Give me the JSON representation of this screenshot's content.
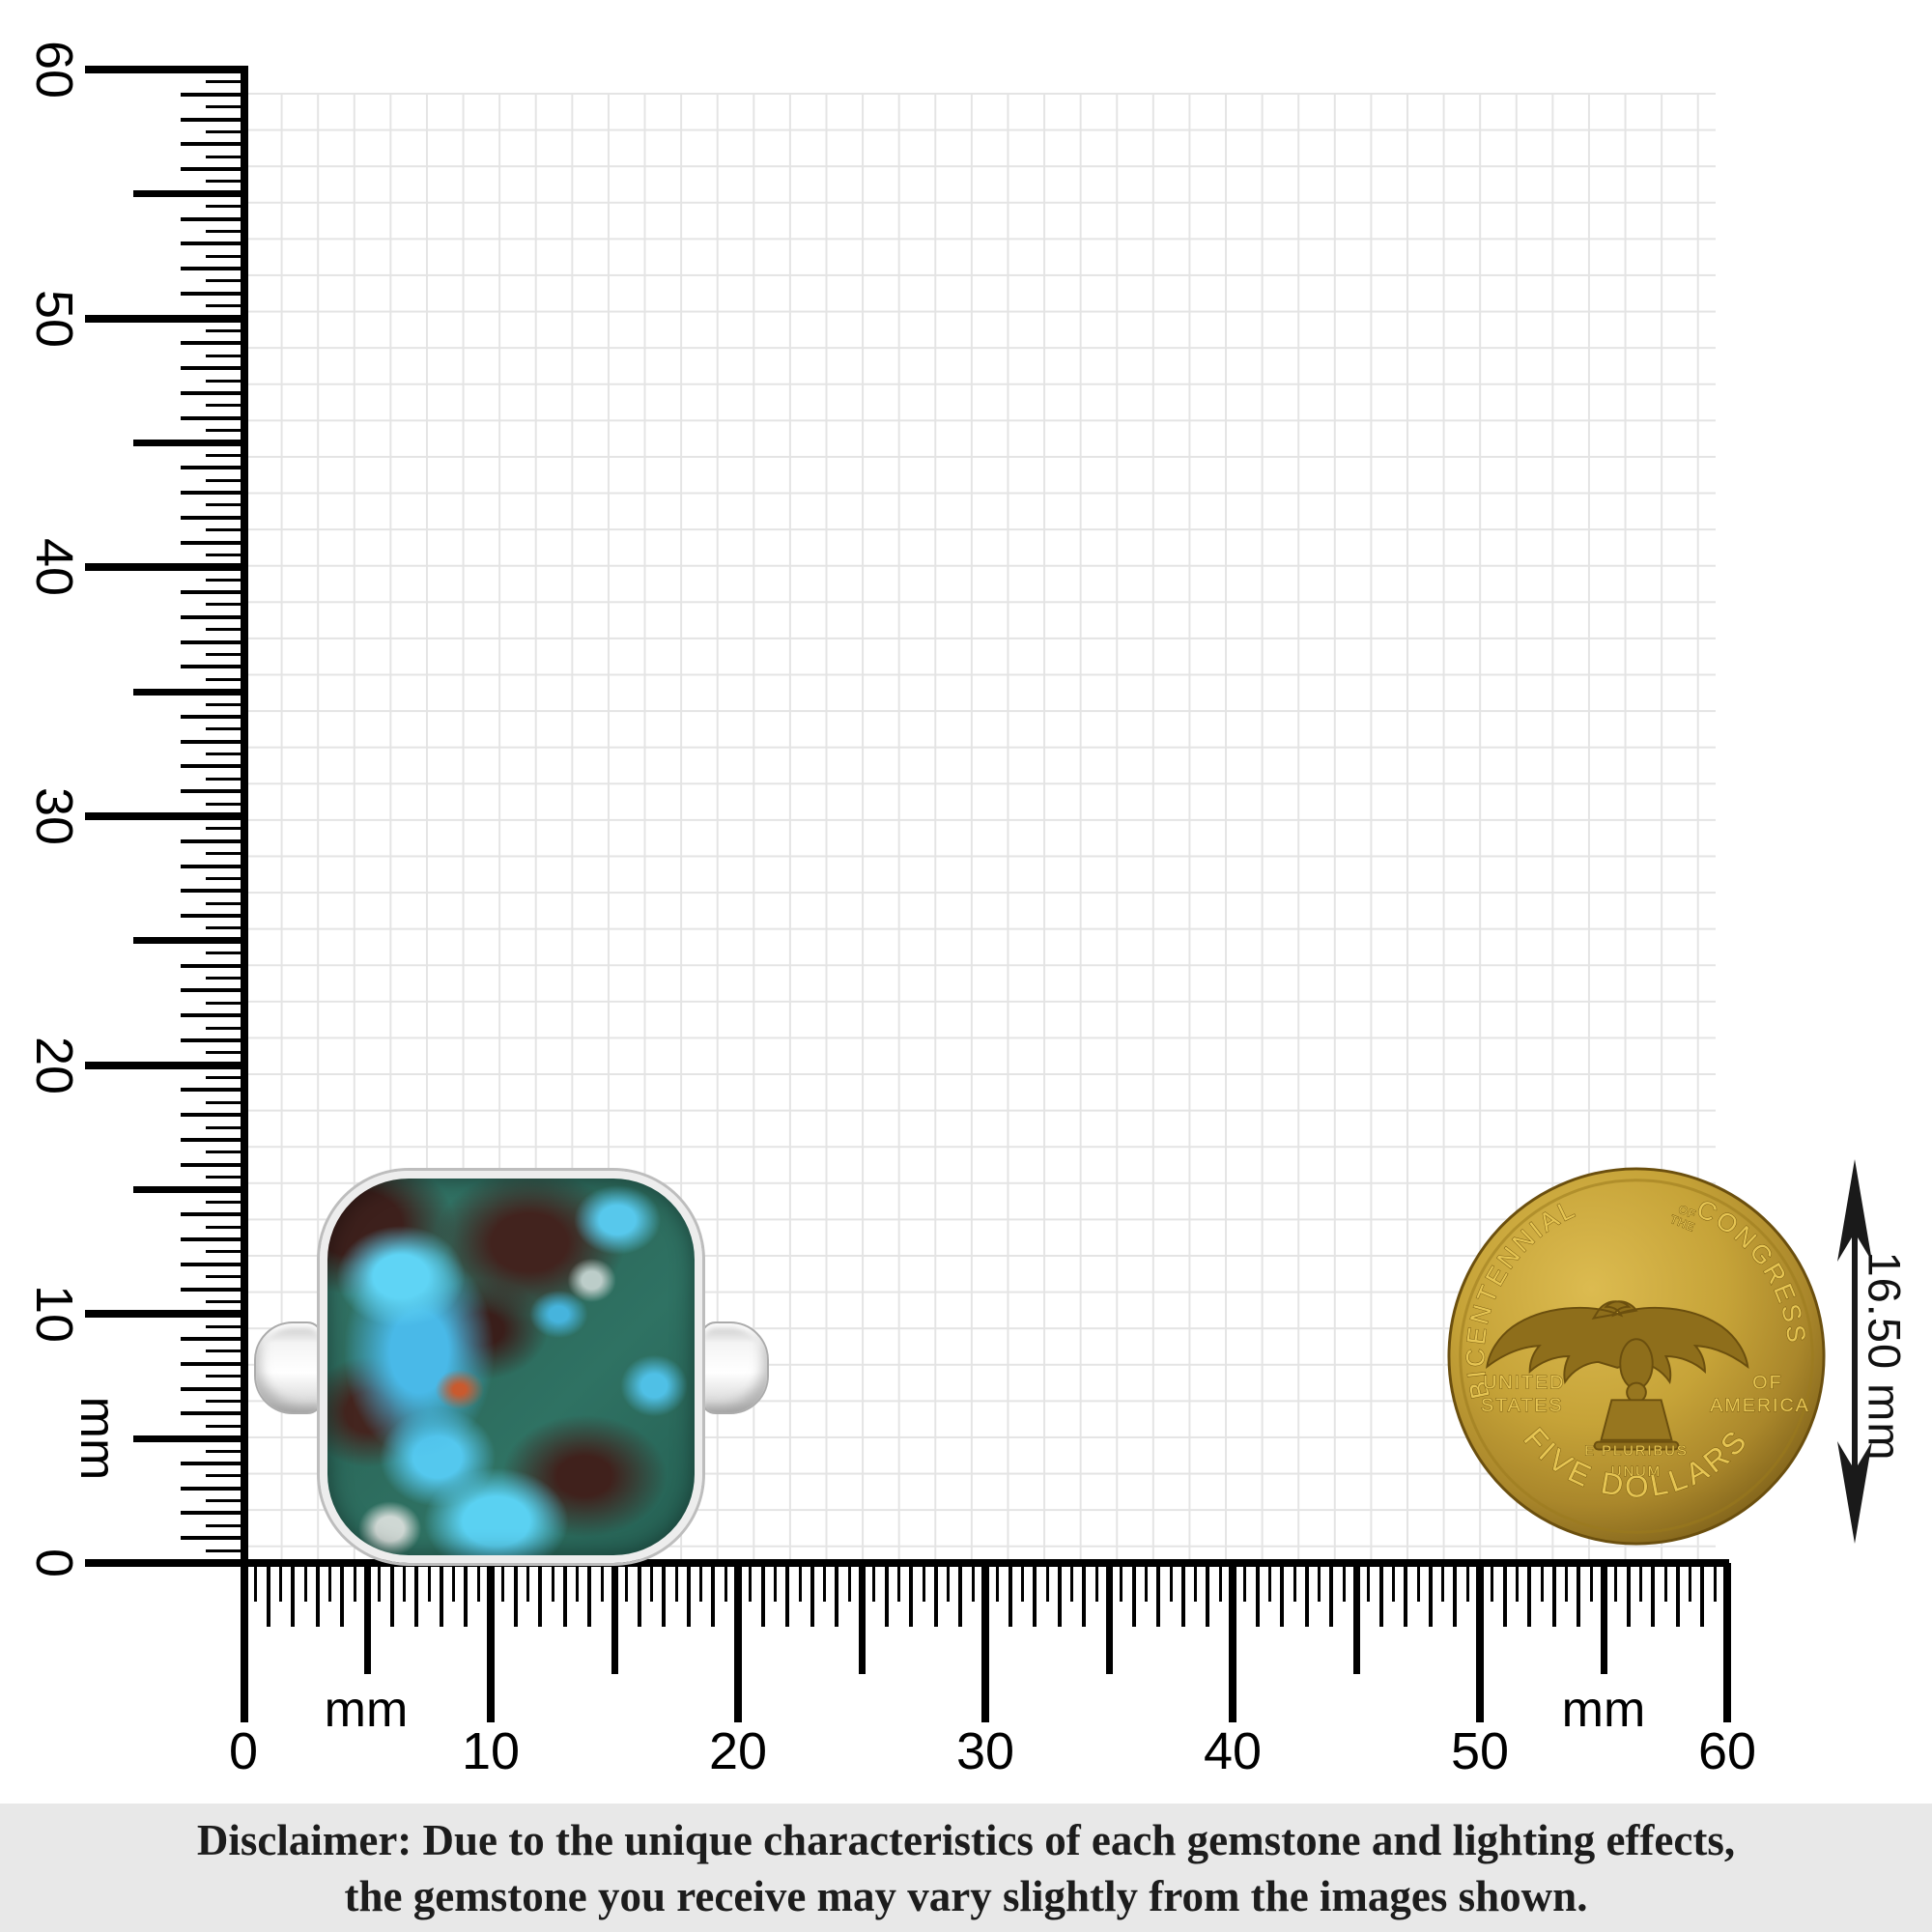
{
  "rulers": {
    "unit_label": "mm",
    "vertical": {
      "min": 0,
      "max": 60,
      "step": 0.5,
      "labels": [
        0,
        10,
        20,
        30,
        40,
        50,
        60
      ]
    },
    "horizontal": {
      "min": 0,
      "max": 60,
      "step": 0.5,
      "labels": [
        0,
        10,
        20,
        30,
        40,
        50,
        60
      ]
    }
  },
  "coin": {
    "legend_top_left": "BICENTENNIAL",
    "legend_top_small_1": "OF",
    "legend_top_small_2": "THE",
    "legend_top_right": "CONGRESS",
    "left_line1": "UNITED",
    "left_line2": "STATES",
    "right_line1": "OF",
    "right_line2": "AMERICA",
    "motto_line1": "E PLURIBUS",
    "motto_line2": "UNUM",
    "legend_bottom": "FIVE DOLLARS"
  },
  "measurement": {
    "label": "16.50 mm"
  },
  "disclaimer": {
    "line1": "Disclaimer: Due to the unique characteristics of each gemstone and lighting effects,",
    "line2": "the gemstone you receive may vary slightly from the images shown."
  },
  "colors": {
    "ink": "#000000",
    "grid_line": "#e4e4e4",
    "coin_gold": "#c6a338",
    "coin_gold_dark": "#7a5c10",
    "coin_text_gold": "#e6c553",
    "silver": "#ededed",
    "stone_teal": "#2f7263",
    "stone_blue": "#54c8ee",
    "stone_brown": "#40211c",
    "stone_orange": "#c95a2e",
    "disclaimer_bg": "#e8e8e8"
  }
}
